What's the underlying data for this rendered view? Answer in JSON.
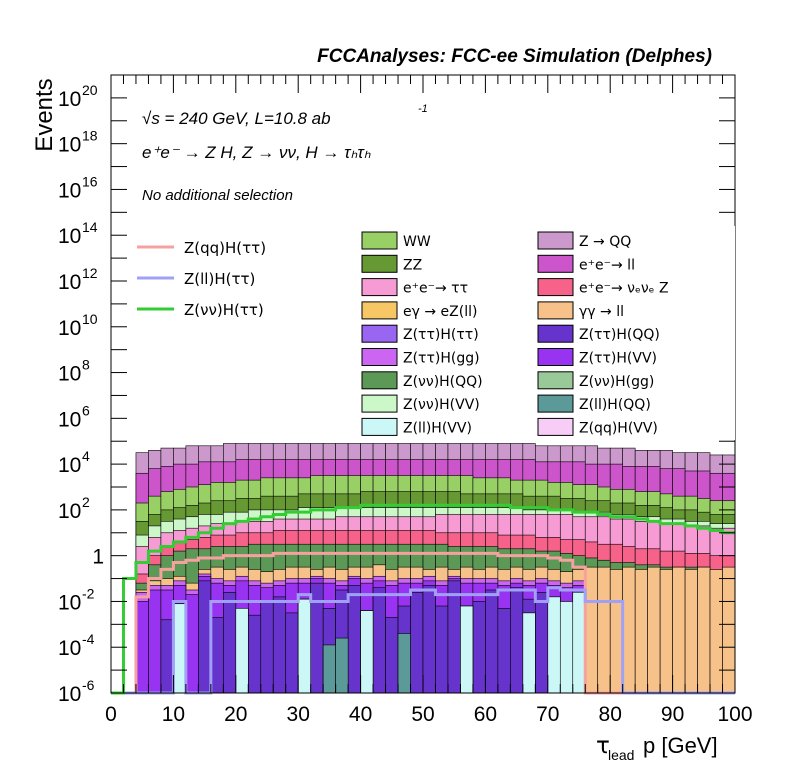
{
  "header": {
    "title": "FCCAnalyses: FCC-ee Simulation (Delphes)",
    "energy_label": "√s = 240 GeV, L=10.8 ab",
    "energy_exponent": "-1",
    "process_label": "e⁺e⁻ → Z H, Z → νν, H → τₕτₕ",
    "selection_label": "No additional selection"
  },
  "chart_data": {
    "type": "area",
    "title": "FCCAnalyses: FCC-ee Simulation (Delphes)",
    "xlabel": "τ_lead p [GeV]",
    "ylabel": "Events",
    "xlim": [
      0,
      100
    ],
    "ylim": [
      1e-06,
      1e+21
    ],
    "yscale": "log",
    "x_ticks": [
      0,
      10,
      20,
      30,
      40,
      50,
      60,
      70,
      80,
      90,
      100
    ],
    "x_tick_labels": [
      "0",
      "10",
      "20",
      "30",
      "40",
      "50",
      "60",
      "70",
      "80",
      "90",
      "100"
    ],
    "y_tick_labels": [
      {
        "base": "10",
        "exp": "-6",
        "value": 1e-06
      },
      {
        "base": "10",
        "exp": "-4",
        "value": 0.0001
      },
      {
        "base": "10",
        "exp": "-2",
        "value": 0.01
      },
      {
        "base": "1",
        "exp": "",
        "value": 1
      },
      {
        "base": "10",
        "exp": "2",
        "value": 100.0
      },
      {
        "base": "10",
        "exp": "4",
        "value": 10000.0
      },
      {
        "base": "10",
        "exp": "6",
        "value": 1000000.0
      },
      {
        "base": "10",
        "exp": "8",
        "value": 100000000.0
      },
      {
        "base": "10",
        "exp": "10",
        "value": 10000000000.0
      },
      {
        "base": "10",
        "exp": "12",
        "value": 1000000000000.0
      },
      {
        "base": "10",
        "exp": "14",
        "value": 100000000000000.0
      },
      {
        "base": "10",
        "exp": "16",
        "value": 1e+16
      },
      {
        "base": "10",
        "exp": "18",
        "value": 1e+18
      },
      {
        "base": "10",
        "exp": "20",
        "value": 1e+20
      }
    ],
    "legend_lines": [
      {
        "name": "Z(qq)H(ττ)",
        "color": "#f7a0a0"
      },
      {
        "name": "Z(ll)H(ττ)",
        "color": "#a0a0f7"
      },
      {
        "name": "Z(νν)H(ττ)",
        "color": "#33cc33"
      }
    ],
    "legend_stack": [
      {
        "name": "WW",
        "color": "#99d066"
      },
      {
        "name": "Z → QQ",
        "color": "#cc99cc"
      },
      {
        "name": "ZZ",
        "color": "#669933"
      },
      {
        "name": "e⁺e⁻→ ll",
        "color": "#cc55cc"
      },
      {
        "name": "e⁺e⁻→ ττ",
        "color": "#f79bd4"
      },
      {
        "name": "e⁺e⁻→ νₑνₑ Z",
        "color": "#f7628a"
      },
      {
        "name": "eγ → eZ(ll)",
        "color": "#f7c766"
      },
      {
        "name": "γγ → ll",
        "color": "#f7c28a"
      },
      {
        "name": "Z(ττ)H(ττ)",
        "color": "#9966f2"
      },
      {
        "name": "Z(ττ)H(QQ)",
        "color": "#6633cc"
      },
      {
        "name": "Z(ττ)H(gg)",
        "color": "#cc66f2"
      },
      {
        "name": "Z(ττ)H(VV)",
        "color": "#9933f2"
      },
      {
        "name": "Z(νν)H(QQ)",
        "color": "#5c9957"
      },
      {
        "name": "Z(νν)H(gg)",
        "color": "#99c899"
      },
      {
        "name": "Z(νν)H(VV)",
        "color": "#ccf7c8"
      },
      {
        "name": "Z(ll)H(QQ)",
        "color": "#5c9999"
      },
      {
        "name": "Z(ll)H(VV)",
        "color": "#ccf7f7"
      },
      {
        "name": "Z(qq)H(VV)",
        "color": "#f7ccf7"
      }
    ],
    "bin_width": 2,
    "stack_order": [
      "Z(ll)H(VV)",
      "Z(ll)H(QQ)",
      "Z(ττ)H(QQ)",
      "Z(ττ)H(VV)",
      "Z(ττ)H(gg)",
      "γγ → ll",
      "Z(νν)H(QQ)",
      "e⁺e⁻→ νₑνₑ Z",
      "e⁺e⁻→ ττ",
      "Z(νν)H(VV)",
      "ZZ",
      "WW",
      "e⁺e⁻→ ll",
      "Z → QQ"
    ],
    "stack_log10_tops": {
      "x_bin_starts": [
        0,
        2,
        4,
        6,
        8,
        10,
        12,
        14,
        16,
        18,
        20,
        22,
        24,
        26,
        28,
        30,
        32,
        34,
        36,
        38,
        40,
        42,
        44,
        46,
        48,
        50,
        52,
        54,
        56,
        58,
        60,
        62,
        64,
        66,
        68,
        70,
        72,
        74,
        76,
        78,
        80,
        82,
        84,
        86,
        88,
        90,
        92,
        94,
        96,
        98
      ],
      "Z(ll)H(VV)": [
        -6,
        -6,
        -6,
        -6,
        -6,
        -2.1,
        -6,
        -6,
        -6,
        -6,
        -2.3,
        -6,
        -6,
        -6,
        -6,
        -1.9,
        -6,
        -6,
        -6,
        -6,
        -2.4,
        -6,
        -6,
        -6,
        -6,
        -6,
        -6,
        -6,
        -2.2,
        -6,
        -6,
        -6,
        -6,
        -2.5,
        -6,
        -1.8,
        -2.0,
        -1.6,
        -6,
        -6,
        -6,
        -6,
        -6,
        -6,
        -6,
        -6,
        -6,
        -6,
        -6,
        -6
      ],
      "Z(ll)H(QQ)": [
        -6,
        -6,
        -6,
        -6,
        -6,
        -2.1,
        -6,
        -6,
        -6,
        -6,
        -2.3,
        -6,
        -6,
        -6,
        -6,
        -1.9,
        -6,
        -3.9,
        -3.6,
        -6,
        -2.4,
        -6,
        -6,
        -3.4,
        -6,
        -6,
        -6,
        -6,
        -2.2,
        -6,
        -6,
        -6,
        -6,
        -2.5,
        -6,
        -1.8,
        -2.0,
        -1.6,
        -6,
        -6,
        -6,
        -6,
        -6,
        -6,
        -6,
        -6,
        -6,
        -6,
        -6,
        -6
      ],
      "Z(ττ)H(QQ)": [
        -6,
        -6,
        -6,
        -6,
        -2.8,
        -2.1,
        -6,
        -1.1,
        -2.7,
        -1.6,
        -2.3,
        -2.6,
        -2.0,
        -1.8,
        -2.5,
        -1.9,
        -1.2,
        -2.3,
        -1.5,
        -1.3,
        -2.4,
        -1.4,
        -2.7,
        -2.2,
        -1.6,
        -1.3,
        -2.2,
        -1.1,
        -2.2,
        -2.0,
        -1.5,
        -2.3,
        -1.4,
        -1.9,
        -1.6,
        -1.8,
        -2.0,
        -1.6,
        -6,
        -6,
        -6,
        -6,
        -6,
        -6,
        -6,
        -6,
        -6,
        -6,
        -6,
        -6
      ],
      "Z(ττ)H(VV)": [
        -6,
        -6,
        -2.0,
        -1.5,
        -1.5,
        -1.3,
        -1.7,
        -0.9,
        -1.2,
        -1.3,
        -1.1,
        -1.3,
        -1.4,
        -1.3,
        -1.2,
        -1.2,
        -1.0,
        -1.2,
        -1.3,
        -1.0,
        -1.2,
        -1.1,
        -1.3,
        -1.2,
        -1.2,
        -1.1,
        -1.3,
        -1.0,
        -1.2,
        -1.2,
        -1.2,
        -1.3,
        -1.2,
        -1.3,
        -1.2,
        -1.3,
        -1.4,
        -1.3,
        -6,
        -6,
        -6,
        -6,
        -6,
        -6,
        -6,
        -6,
        -6,
        -6,
        -6,
        -6
      ],
      "Z(ττ)H(gg)": [
        -6,
        -6,
        -1.6,
        -1.3,
        -1.3,
        -1.1,
        -1.5,
        -0.8,
        -1.0,
        -1.1,
        -0.9,
        -1.1,
        -1.2,
        -1.1,
        -1.0,
        -1.0,
        -0.9,
        -1.0,
        -1.1,
        -0.9,
        -1.0,
        -0.9,
        -1.1,
        -1.0,
        -1.0,
        -0.9,
        -1.1,
        -0.9,
        -1.0,
        -1.0,
        -1.0,
        -1.1,
        -1.0,
        -1.1,
        -1.0,
        -1.1,
        -1.2,
        -1.1,
        -6,
        -6,
        -6,
        -6,
        -6,
        -6,
        -6,
        -6,
        -6,
        -6,
        -6,
        -6
      ],
      "γγ → ll": [
        -6,
        -6,
        -1.5,
        -1.1,
        -1.0,
        -0.9,
        -1.2,
        -0.6,
        -0.5,
        -0.6,
        -0.5,
        -0.6,
        -0.7,
        -0.6,
        -0.5,
        -0.5,
        -0.6,
        -0.5,
        -0.6,
        -0.5,
        -0.5,
        -0.4,
        -0.6,
        -0.5,
        -0.5,
        -0.6,
        -0.5,
        -0.6,
        -0.5,
        -0.6,
        -0.5,
        -0.6,
        -0.5,
        -0.6,
        -0.5,
        -0.6,
        -0.7,
        -0.6,
        -0.5,
        -0.5,
        -0.6,
        -0.5,
        -0.6,
        -0.5,
        -0.6,
        -0.5,
        -0.6,
        -0.5,
        -0.6,
        -0.5
      ],
      "Z(νν)H(QQ)": [
        -6,
        -6,
        -1.2,
        -0.4,
        0.0,
        0.2,
        0.3,
        0.3,
        0.4,
        0.4,
        0.4,
        0.5,
        0.5,
        0.5,
        0.5,
        0.5,
        0.5,
        0.5,
        0.5,
        0.5,
        0.5,
        0.5,
        0.5,
        0.5,
        0.5,
        0.5,
        0.5,
        0.4,
        0.4,
        0.4,
        0.4,
        0.3,
        0.3,
        0.3,
        0.2,
        0.2,
        0.1,
        0.0,
        -0.1,
        -0.2,
        -0.3,
        -0.3,
        -0.4,
        -0.4,
        -0.5,
        -0.5,
        -0.5,
        -0.5,
        -0.6,
        -0.6
      ],
      "e⁺e⁻→ νₑνₑ Z": [
        -6,
        -6,
        -0.8,
        0.0,
        0.4,
        0.6,
        0.7,
        0.8,
        0.9,
        0.9,
        1.0,
        1.0,
        1.0,
        1.1,
        1.1,
        1.1,
        1.1,
        1.1,
        1.1,
        1.1,
        1.1,
        1.1,
        1.1,
        1.1,
        1.1,
        1.1,
        1.0,
        1.0,
        1.0,
        1.0,
        1.0,
        0.9,
        0.9,
        0.9,
        0.8,
        0.8,
        0.7,
        0.7,
        0.6,
        0.5,
        0.5,
        0.4,
        0.3,
        0.3,
        0.2,
        0.2,
        0.1,
        0.1,
        0.0,
        0.0
      ],
      "e⁺e⁻→ ττ": [
        -6,
        -6,
        0.4,
        0.8,
        1.0,
        1.1,
        1.2,
        1.3,
        1.4,
        1.4,
        1.5,
        1.5,
        1.5,
        1.6,
        1.6,
        1.6,
        1.6,
        1.6,
        1.7,
        1.7,
        1.7,
        1.7,
        1.7,
        1.7,
        1.7,
        1.7,
        1.8,
        1.8,
        1.8,
        1.8,
        1.8,
        1.8,
        1.8,
        1.8,
        1.8,
        1.8,
        1.8,
        1.7,
        1.7,
        1.7,
        1.6,
        1.6,
        1.5,
        1.5,
        1.4,
        1.4,
        1.3,
        1.3,
        1.2,
        1.2
      ],
      "Z(νν)H(VV)": [
        -6,
        -6,
        0.9,
        1.3,
        1.5,
        1.6,
        1.7,
        1.8,
        1.8,
        1.9,
        1.9,
        2.0,
        2.0,
        2.0,
        2.0,
        2.1,
        2.1,
        2.1,
        2.1,
        2.1,
        2.1,
        2.1,
        2.1,
        2.1,
        2.1,
        2.1,
        2.1,
        2.1,
        2.1,
        2.1,
        2.1,
        2.1,
        2.1,
        2.0,
        2.0,
        2.0,
        2.0,
        1.9,
        1.9,
        1.9,
        1.8,
        1.8,
        1.7,
        1.7,
        1.6,
        1.6,
        1.5,
        1.5,
        1.4,
        1.4
      ],
      "ZZ": [
        -6,
        -6,
        1.5,
        1.8,
        2.0,
        2.1,
        2.2,
        2.3,
        2.4,
        2.4,
        2.5,
        2.5,
        2.6,
        2.6,
        2.6,
        2.7,
        2.7,
        2.7,
        2.7,
        2.7,
        2.8,
        2.8,
        2.8,
        2.8,
        2.8,
        2.8,
        2.8,
        2.8,
        2.7,
        2.7,
        2.7,
        2.7,
        2.7,
        2.6,
        2.6,
        2.6,
        2.5,
        2.5,
        2.4,
        2.4,
        2.3,
        2.3,
        2.2,
        2.2,
        2.1,
        2.0,
        2.0,
        1.9,
        1.8,
        1.8
      ],
      "WW": [
        -6,
        -6,
        2.3,
        2.6,
        2.8,
        2.9,
        3.0,
        3.1,
        3.2,
        3.2,
        3.3,
        3.3,
        3.4,
        3.4,
        3.4,
        3.4,
        3.5,
        3.5,
        3.5,
        3.5,
        3.5,
        3.5,
        3.5,
        3.5,
        3.5,
        3.5,
        3.5,
        3.5,
        3.5,
        3.4,
        3.4,
        3.4,
        3.3,
        3.3,
        3.3,
        3.2,
        3.2,
        3.1,
        3.1,
        3.0,
        2.9,
        2.9,
        2.8,
        2.8,
        2.7,
        2.6,
        2.6,
        2.5,
        2.4,
        2.4
      ],
      "e⁺e⁻→ ll": [
        -6,
        -6,
        3.6,
        3.8,
        3.9,
        4.0,
        4.0,
        4.1,
        4.1,
        4.1,
        4.2,
        4.2,
        4.2,
        4.2,
        4.2,
        4.2,
        4.2,
        4.2,
        4.2,
        4.2,
        4.2,
        4.2,
        4.2,
        4.2,
        4.2,
        4.2,
        4.2,
        4.2,
        4.2,
        4.2,
        4.2,
        4.2,
        4.2,
        4.2,
        4.1,
        4.1,
        4.1,
        4.1,
        4.0,
        4.0,
        4.0,
        3.9,
        3.9,
        3.9,
        3.8,
        3.8,
        3.7,
        3.7,
        3.6,
        3.6
      ],
      "Z → QQ": [
        -6,
        -6,
        4.5,
        4.6,
        4.7,
        4.7,
        4.8,
        4.8,
        4.8,
        4.9,
        4.9,
        4.9,
        4.9,
        4.9,
        4.9,
        4.9,
        4.9,
        4.9,
        4.9,
        4.9,
        4.9,
        4.9,
        4.9,
        4.9,
        4.9,
        4.9,
        4.9,
        4.9,
        4.9,
        4.9,
        4.9,
        4.9,
        4.9,
        4.9,
        4.8,
        4.8,
        4.8,
        4.8,
        4.8,
        4.7,
        4.7,
        4.7,
        4.6,
        4.6,
        4.6,
        4.5,
        4.5,
        4.5,
        4.4,
        4.4
      ]
    },
    "overlay_log10": {
      "Z(qq)H(ττ)": [
        -6,
        -6,
        -1.8,
        -1.0,
        -0.6,
        -0.3,
        -0.2,
        -0.1,
        -0.1,
        0.0,
        0.0,
        0.0,
        0.0,
        0.1,
        0.1,
        0.1,
        0.1,
        0.1,
        0.1,
        0.1,
        0.1,
        0.1,
        0.1,
        0.1,
        0.1,
        0.1,
        0.1,
        0.1,
        0.1,
        0.1,
        0.1,
        0.0,
        0.0,
        0.0,
        0.0,
        -0.1,
        -0.2,
        -0.5,
        -6,
        -6,
        -6,
        -6,
        -6,
        -6,
        -6,
        -6,
        -6,
        -6,
        -6,
        -6
      ],
      "Z(ll)H(ττ)": [
        -6,
        -6,
        -6,
        -6,
        -6,
        -2.0,
        -6,
        -6,
        -2.0,
        -2.0,
        -2.0,
        -2.0,
        -2.0,
        -2.0,
        -2.0,
        -1.7,
        -2.0,
        -2.0,
        -2.0,
        -1.7,
        -1.7,
        -1.7,
        -1.7,
        -1.7,
        -1.5,
        -1.5,
        -1.7,
        -1.7,
        -1.7,
        -1.7,
        -1.7,
        -1.5,
        -1.5,
        -1.5,
        -2.0,
        -1.4,
        -1.5,
        -1.5,
        -2.0,
        -2.0,
        -2.0,
        -6,
        -6,
        -6,
        -6,
        -6,
        -6,
        -6,
        -6,
        -6
      ],
      "Z(νν)H(ττ)": [
        -6,
        -1.0,
        -0.3,
        0.2,
        0.4,
        0.6,
        0.8,
        1.0,
        1.2,
        1.4,
        1.5,
        1.6,
        1.7,
        1.8,
        1.9,
        1.9,
        2.0,
        2.0,
        2.1,
        2.1,
        2.2,
        2.2,
        2.2,
        2.2,
        2.2,
        2.2,
        2.2,
        2.2,
        2.2,
        2.2,
        2.2,
        2.2,
        2.1,
        2.1,
        2.1,
        2.0,
        2.0,
        1.9,
        1.9,
        1.8,
        1.7,
        1.7,
        1.6,
        1.5,
        1.4,
        1.4,
        1.3,
        1.2,
        1.1,
        1.0
      ]
    }
  }
}
